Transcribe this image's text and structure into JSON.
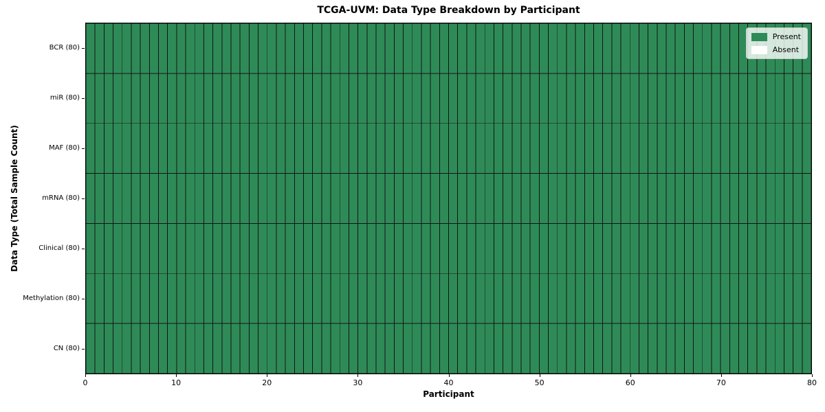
{
  "chart_data": {
    "type": "heatmap",
    "title": "TCGA-UVM: Data Type Breakdown by Participant",
    "xlabel": "Participant",
    "ylabel": "Data Type (Total Sample Count)",
    "xlim": [
      0,
      80
    ],
    "x_ticks": [
      0,
      10,
      20,
      30,
      40,
      50,
      60,
      70,
      80
    ],
    "n_participants": 80,
    "rows": [
      {
        "label": "BCR (80)",
        "total_samples": 80,
        "present_count": 80,
        "absent_count": 0
      },
      {
        "label": "miR (80)",
        "total_samples": 80,
        "present_count": 80,
        "absent_count": 0
      },
      {
        "label": "MAF (80)",
        "total_samples": 80,
        "present_count": 80,
        "absent_count": 0
      },
      {
        "label": "mRNA (80)",
        "total_samples": 80,
        "present_count": 80,
        "absent_count": 0
      },
      {
        "label": "Clinical (80)",
        "total_samples": 80,
        "present_count": 80,
        "absent_count": 0
      },
      {
        "label": "Methylation (80)",
        "total_samples": 80,
        "present_count": 80,
        "absent_count": 0
      },
      {
        "label": "CN (80)",
        "total_samples": 80,
        "present_count": 80,
        "absent_count": 0
      }
    ],
    "legend": [
      {
        "label": "Present",
        "color": "#2E8B57"
      },
      {
        "label": "Absent",
        "color": "#FFFFFF"
      }
    ],
    "colors": {
      "present": "#2E8B57",
      "absent": "#FFFFFF",
      "grid_line": "#141414",
      "spine": "#000000"
    },
    "legend_position": "upper right",
    "grid": "per-cell edges"
  }
}
